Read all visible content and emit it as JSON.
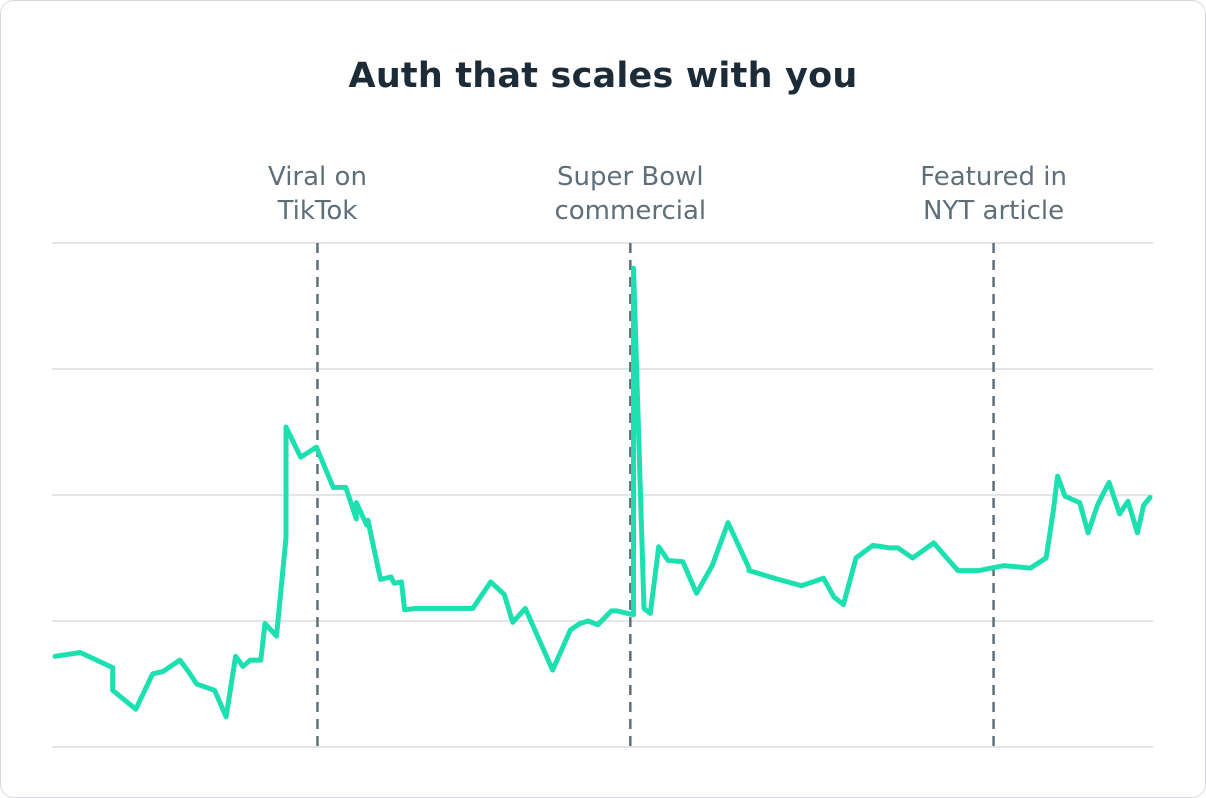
{
  "chart_data": {
    "type": "line",
    "title": "Auth that scales with you",
    "xlabel": "",
    "ylabel": "",
    "ylim": [
      0,
      4
    ],
    "gridlines": [
      0,
      1,
      2,
      3,
      4
    ],
    "line_color": "#1de0b0",
    "x": [
      0,
      2.4,
      5.5,
      5.5,
      7.7,
      9.3,
      10.3,
      11.9,
      12.7,
      13.5,
      15.2,
      16.3,
      17.2,
      17.9,
      18.6,
      19.6,
      20,
      21.1,
      22,
      22,
      23.4,
      24.9,
      26.5,
      27.7,
      28.7,
      28.7,
      29.7,
      29.8,
      31,
      32,
      32.3,
      33,
      33.3,
      33.4,
      34.4,
      35.1,
      39.8,
      41.5,
      42.8,
      43.6,
      44.8,
      47.4,
      49.1,
      50,
      50.8,
      51.7,
      53,
      53.5,
      55.1,
      55.1,
      56.1,
      56.7,
      57.5,
      58.4,
      59.8,
      61.1,
      62.6,
      64.1,
      66.1,
      66.1,
      68.9,
      71.1,
      73.2,
      74.2,
      75.1,
      76.3,
      77.9,
      79.5,
      80.3,
      81.7,
      83.7,
      86,
      88,
      90.4,
      92.9,
      94.4,
      95.1,
      95.5,
      96.2,
      96.5,
      97.3,
      97.6,
      98.4,
      99.3,
      99.9,
      100.4,
      101.4,
      102.2,
      103.1,
      103.7,
      104.3
    ],
    "y": [
      0.72,
      0.75,
      0.63,
      0.45,
      0.3,
      0.58,
      0.6,
      0.69,
      0.6,
      0.5,
      0.45,
      0.24,
      0.72,
      0.64,
      0.69,
      0.69,
      0.98,
      0.88,
      1.66,
      2.54,
      2.3,
      2.38,
      2.06,
      2.06,
      1.81,
      1.94,
      1.76,
      1.8,
      1.33,
      1.35,
      1.3,
      1.31,
      1.09,
      1.09,
      1.1,
      1.1,
      1.1,
      1.31,
      1.21,
      0.99,
      1.1,
      0.61,
      0.93,
      0.98,
      1.0,
      0.97,
      1.08,
      1.08,
      1.05,
      3.8,
      1.1,
      1.06,
      1.59,
      1.48,
      1.47,
      1.22,
      1.44,
      1.78,
      1.42,
      1.4,
      1.33,
      1.28,
      1.34,
      1.19,
      1.13,
      1.5,
      1.6,
      1.58,
      1.58,
      1.5,
      1.62,
      1.4,
      1.4,
      1.44,
      1.42,
      1.5,
      1.88,
      2.15,
      1.99,
      1.98,
      1.95,
      1.94,
      1.7,
      1.92,
      2.02,
      2.1,
      1.85,
      1.95,
      1.7,
      1.92,
      1.98
    ]
  },
  "annotations": [
    {
      "x": 25.0,
      "line1": "Viral on",
      "line2": "TikTok"
    },
    {
      "x": 54.8,
      "line1": "Super Bowl",
      "line2": "commercial"
    },
    {
      "x": 89.4,
      "line1": "Featured in",
      "line2": "NYT article"
    }
  ]
}
